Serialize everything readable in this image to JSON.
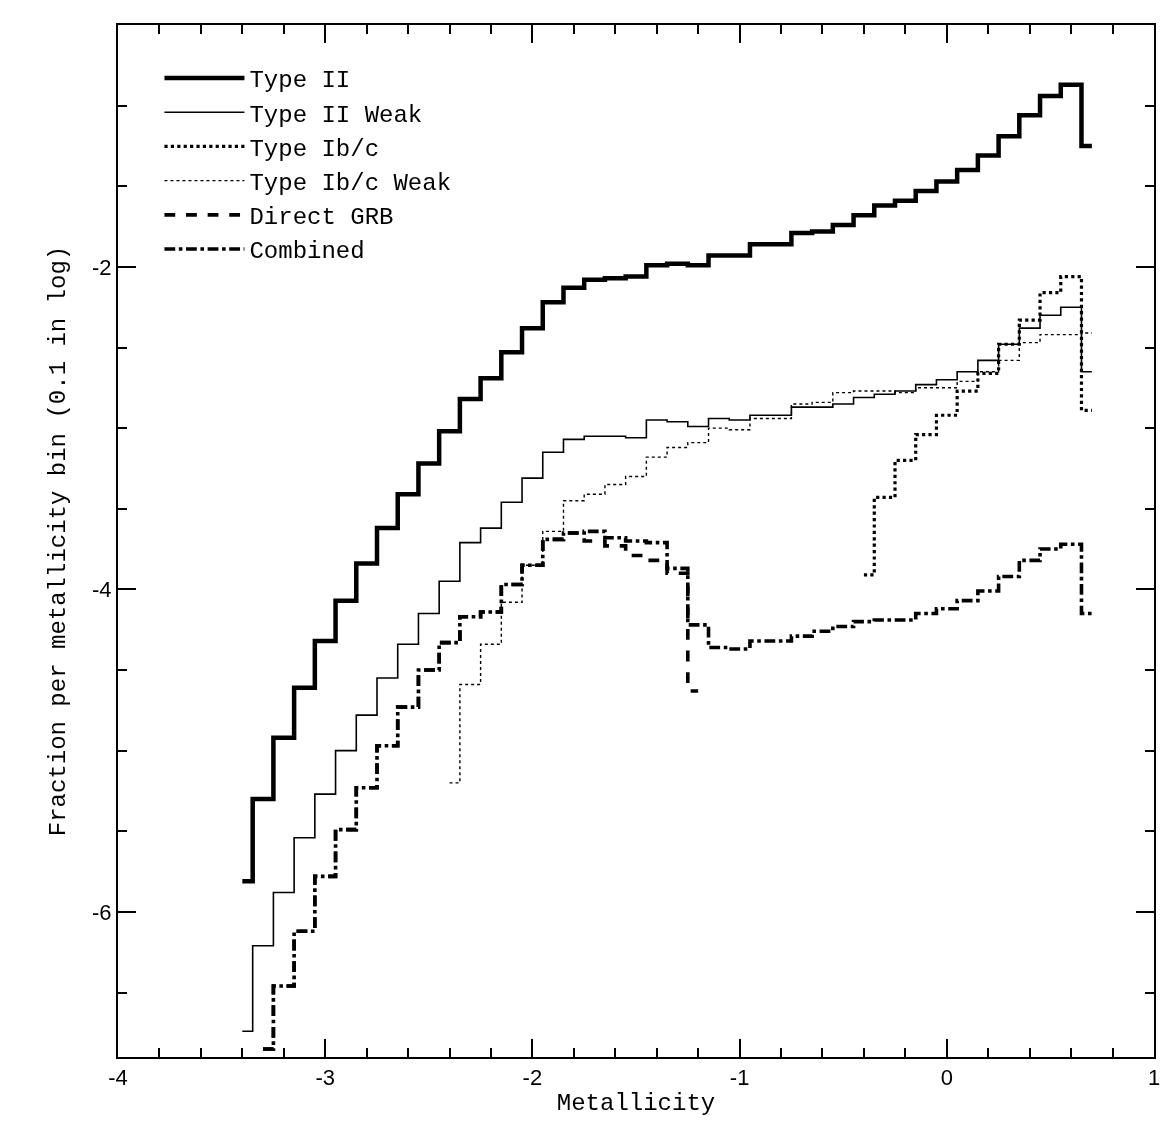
{
  "chart_data": {
    "type": "step",
    "xlabel": "Metallicity",
    "ylabel": "Fraction per metallicity bin (0.1 in log)",
    "series": [
      {
        "name": "Type II",
        "color": "#000000",
        "line_style": "solid",
        "x": [
          -3.4,
          -3.3,
          -3.2,
          -3.1,
          -3.0,
          -2.9,
          -2.8,
          -2.7,
          -2.6,
          -2.5,
          -2.4,
          -2.3,
          -2.2,
          -2.1,
          -2.0,
          -1.9,
          -1.8,
          -1.7,
          -1.6,
          -1.5,
          -1.4,
          -1.3,
          -1.2,
          -1.1,
          -1.0,
          -0.9,
          -0.8,
          -0.7,
          -0.6,
          -0.5,
          -0.4,
          -0.3,
          -0.2,
          -0.1,
          0.0,
          0.1,
          0.2,
          0.3,
          0.4,
          0.5,
          0.6,
          0.7
        ],
        "values": [
          -5.81,
          -5.3,
          -4.92,
          -4.61,
          -4.32,
          -4.07,
          -3.84,
          -3.62,
          -3.41,
          -3.22,
          -3.02,
          -2.82,
          -2.69,
          -2.53,
          -2.38,
          -2.22,
          -2.13,
          -2.08,
          -2.07,
          -2.06,
          -1.99,
          -1.98,
          -1.99,
          -1.93,
          -1.93,
          -1.86,
          -1.86,
          -1.79,
          -1.78,
          -1.74,
          -1.68,
          -1.62,
          -1.59,
          -1.53,
          -1.47,
          -1.4,
          -1.31,
          -1.19,
          -1.06,
          -0.94,
          -0.87,
          -1.25
        ]
      },
      {
        "name": "Type II Weak",
        "color": "#000000",
        "line_style": "solid",
        "x": [
          -3.4,
          -3.3,
          -3.2,
          -3.1,
          -3.0,
          -2.9,
          -2.8,
          -2.7,
          -2.6,
          -2.5,
          -2.4,
          -2.3,
          -2.2,
          -2.1,
          -2.0,
          -1.9,
          -1.8,
          -1.7,
          -1.6,
          -1.5,
          -1.4,
          -1.3,
          -1.2,
          -1.1,
          -1.0,
          -0.9,
          -0.8,
          -0.7,
          -0.6,
          -0.5,
          -0.4,
          -0.3,
          -0.2,
          -0.1,
          0.0,
          0.1,
          0.2,
          0.3,
          0.4,
          0.5,
          0.6,
          0.7
        ],
        "values": [
          -6.74,
          -6.21,
          -5.88,
          -5.54,
          -5.27,
          -5.0,
          -4.78,
          -4.55,
          -4.34,
          -4.15,
          -3.95,
          -3.71,
          -3.62,
          -3.46,
          -3.31,
          -3.15,
          -3.07,
          -3.05,
          -3.05,
          -3.06,
          -2.95,
          -2.96,
          -2.99,
          -2.94,
          -2.95,
          -2.92,
          -2.92,
          -2.87,
          -2.87,
          -2.85,
          -2.81,
          -2.79,
          -2.77,
          -2.73,
          -2.7,
          -2.65,
          -2.58,
          -2.48,
          -2.38,
          -2.3,
          -2.25,
          -2.65
        ]
      },
      {
        "name": "Type Ib/c",
        "color": "#000000",
        "line_style": "dotted",
        "x": [
          -0.4,
          -0.3,
          -0.2,
          -0.1,
          0.0,
          0.1,
          0.2,
          0.3,
          0.4,
          0.5,
          0.6,
          0.7
        ],
        "values": [
          -3.91,
          -3.43,
          -3.2,
          -3.04,
          -2.92,
          -2.77,
          -2.66,
          -2.48,
          -2.33,
          -2.16,
          -2.06,
          -2.89
        ]
      },
      {
        "name": "Type Ib/c Weak",
        "color": "#000000",
        "line_style": "dotted",
        "x": [
          -2.4,
          -2.3,
          -2.2,
          -2.1,
          -2.0,
          -1.9,
          -1.8,
          -1.7,
          -1.6,
          -1.5,
          -1.4,
          -1.3,
          -1.2,
          -1.1,
          -1.0,
          -0.9,
          -0.8,
          -0.7,
          -0.6,
          -0.5,
          -0.4,
          -0.3,
          -0.2,
          -0.1,
          0.0,
          0.1,
          0.2,
          0.3,
          0.4,
          0.5,
          0.6,
          0.7
        ],
        "values": [
          -5.2,
          -4.59,
          -4.34,
          -4.08,
          -3.85,
          -3.64,
          -3.45,
          -3.41,
          -3.35,
          -3.3,
          -3.18,
          -3.12,
          -3.09,
          -3.0,
          -3.01,
          -2.94,
          -2.94,
          -2.85,
          -2.84,
          -2.78,
          -2.77,
          -2.77,
          -2.78,
          -2.75,
          -2.75,
          -2.71,
          -2.65,
          -2.58,
          -2.47,
          -2.42,
          -2.42,
          -2.41
        ]
      },
      {
        "name": "Direct GRB",
        "color": "#000000",
        "line_style": "dashed",
        "x": [
          -3.3,
          -3.2,
          -3.1,
          -3.0,
          -2.9,
          -2.8,
          -2.7,
          -2.6,
          -2.5,
          -2.4,
          -2.3,
          -2.2,
          -2.1,
          -2.0,
          -1.9,
          -1.8,
          -1.7,
          -1.6,
          -1.5,
          -1.4,
          -1.3,
          -1.2
        ],
        "values": [
          -6.85,
          -6.46,
          -6.12,
          -5.78,
          -5.49,
          -5.23,
          -4.97,
          -4.73,
          -4.5,
          -4.33,
          -4.17,
          -4.14,
          -3.97,
          -3.85,
          -3.69,
          -3.65,
          -3.7,
          -3.73,
          -3.79,
          -3.82,
          -3.9,
          -4.63
        ]
      },
      {
        "name": "Combined",
        "color": "#000000",
        "line_style": "dashdot",
        "x": [
          -3.3,
          -3.2,
          -3.1,
          -3.0,
          -2.9,
          -2.8,
          -2.7,
          -2.6,
          -2.5,
          -2.4,
          -2.3,
          -2.2,
          -2.1,
          -2.0,
          -1.9,
          -1.8,
          -1.7,
          -1.6,
          -1.5,
          -1.4,
          -1.3,
          -1.2,
          -1.1,
          -1.0,
          -0.9,
          -0.8,
          -0.7,
          -0.6,
          -0.5,
          -0.4,
          -0.3,
          -0.2,
          -0.1,
          0.0,
          0.1,
          0.2,
          0.3,
          0.4,
          0.5,
          0.6,
          0.7
        ],
        "values": [
          -6.85,
          -6.46,
          -6.12,
          -5.78,
          -5.49,
          -5.23,
          -4.97,
          -4.73,
          -4.5,
          -4.33,
          -4.17,
          -4.14,
          -3.97,
          -3.85,
          -3.69,
          -3.65,
          -3.64,
          -3.68,
          -3.7,
          -3.71,
          -3.87,
          -4.22,
          -4.36,
          -4.37,
          -4.32,
          -4.32,
          -4.29,
          -4.26,
          -4.23,
          -4.2,
          -4.19,
          -4.19,
          -4.15,
          -4.12,
          -4.07,
          -4.01,
          -3.92,
          -3.82,
          -3.75,
          -3.72,
          -4.15
        ]
      }
    ],
    "xlim": [
      -4,
      1
    ],
    "xticks": [
      -4,
      {
        "value": -3.8,
        "label": null
      },
      {
        "value": -3.6,
        "label": null
      },
      {
        "value": -3.4,
        "label": null
      },
      {
        "value": -3.2,
        "label": null
      },
      -3,
      {
        "value": -2.8,
        "label": null
      },
      {
        "value": -2.6,
        "label": null
      },
      {
        "value": -2.4,
        "label": null
      },
      {
        "value": -2.2,
        "label": null
      },
      -2,
      {
        "value": -1.8,
        "label": null
      },
      {
        "value": -1.6,
        "label": null
      },
      {
        "value": -1.4,
        "label": null
      },
      {
        "value": -1.2,
        "label": null
      },
      -1,
      {
        "value": -0.8,
        "label": null
      },
      {
        "value": -0.6,
        "label": null
      },
      {
        "value": -0.4,
        "label": null
      },
      {
        "value": -0.2,
        "label": null
      },
      0,
      {
        "value": 0.2,
        "label": null
      },
      {
        "value": 0.4,
        "label": null
      },
      {
        "value": 0.6,
        "label": null
      },
      {
        "value": 0.8,
        "label": null
      },
      1
    ],
    "ylim": [
      -6.9,
      -0.5
    ],
    "yticks": [
      {
        "value": -6.5,
        "label": null
      },
      -6,
      {
        "value": -5.5,
        "label": null
      },
      {
        "value": -5,
        "label": null
      },
      {
        "value": -4.5,
        "label": null
      },
      -4,
      {
        "value": -3.5,
        "label": null
      },
      {
        "value": -3,
        "label": null
      },
      {
        "value": -2.5,
        "label": null
      },
      -2,
      {
        "value": -1.5,
        "label": null
      },
      {
        "value": -1,
        "label": null
      }
    ],
    "legend": "top left"
  }
}
